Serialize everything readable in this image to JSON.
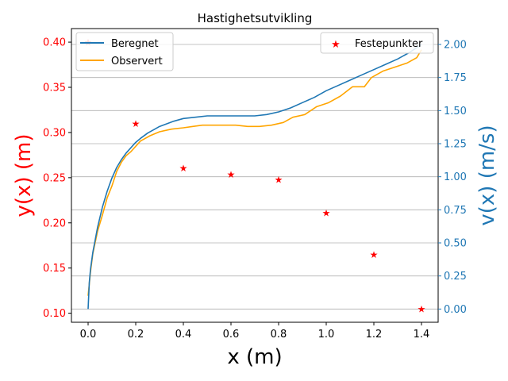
{
  "chart_data": {
    "type": "line",
    "title": "Hastighetsutvikling",
    "xlabel": "x (m)",
    "ylabel_left": "y(x) (m)",
    "ylabel_right": "v(x) (m/s)",
    "xlim": [
      -0.07,
      1.47
    ],
    "ylim_left": [
      0.09,
      0.415
    ],
    "ylim_right": [
      -0.1,
      2.12
    ],
    "x_ticks": [
      "0.0",
      "0.2",
      "0.4",
      "0.6",
      "0.8",
      "1.0",
      "1.2",
      "1.4"
    ],
    "y_left_ticks": [
      "0.10",
      "0.15",
      "0.20",
      "0.25",
      "0.30",
      "0.35",
      "0.40"
    ],
    "y_right_ticks": [
      "0.00",
      "0.25",
      "0.50",
      "0.75",
      "1.00",
      "1.25",
      "1.50",
      "1.75",
      "2.00"
    ],
    "grid": "horizontal on right axis",
    "colors": {
      "left_axis": "#ff0000",
      "right_axis": "#1f77b4",
      "beregnet": "#1f77b4",
      "observert": "#ffa500",
      "festepunkter": "#ff0000",
      "grid": "#b0b0b0"
    },
    "legend_left": {
      "placement": "top-left",
      "entries": [
        "Beregnet",
        "Observert"
      ]
    },
    "legend_right": {
      "placement": "top-right",
      "entries": [
        "Festepunkter"
      ]
    },
    "festepunkter": {
      "name": "Festepunkter",
      "x": [
        0.0,
        0.2,
        0.4,
        0.6,
        0.8,
        1.0,
        1.2,
        1.4
      ],
      "y": [
        0.4,
        0.31,
        0.261,
        0.254,
        0.248,
        0.211,
        0.165,
        0.105
      ]
    },
    "series": [
      {
        "name": "Beregnet",
        "axis": "right",
        "x": [
          0.0,
          0.005,
          0.01,
          0.02,
          0.04,
          0.06,
          0.08,
          0.1,
          0.12,
          0.14,
          0.16,
          0.18,
          0.2,
          0.22,
          0.25,
          0.28,
          0.3,
          0.33,
          0.36,
          0.4,
          0.45,
          0.5,
          0.55,
          0.6,
          0.65,
          0.7,
          0.75,
          0.8,
          0.85,
          0.9,
          0.95,
          1.0,
          1.05,
          1.1,
          1.15,
          1.2,
          1.25,
          1.3,
          1.35,
          1.4
        ],
        "values": [
          0.0,
          0.2,
          0.3,
          0.43,
          0.62,
          0.77,
          0.89,
          0.99,
          1.07,
          1.13,
          1.18,
          1.22,
          1.26,
          1.29,
          1.33,
          1.36,
          1.38,
          1.4,
          1.42,
          1.44,
          1.45,
          1.46,
          1.46,
          1.46,
          1.46,
          1.46,
          1.47,
          1.49,
          1.52,
          1.56,
          1.6,
          1.65,
          1.69,
          1.73,
          1.77,
          1.81,
          1.85,
          1.89,
          1.94,
          2.0
        ]
      },
      {
        "name": "Observert",
        "axis": "right",
        "x": [
          0.0,
          0.01,
          0.02,
          0.04,
          0.06,
          0.08,
          0.1,
          0.12,
          0.14,
          0.16,
          0.18,
          0.2,
          0.22,
          0.26,
          0.3,
          0.35,
          0.4,
          0.44,
          0.48,
          0.53,
          0.57,
          0.62,
          0.67,
          0.72,
          0.77,
          0.82,
          0.86,
          0.91,
          0.96,
          1.01,
          1.06,
          1.11,
          1.16,
          1.19,
          1.24,
          1.29,
          1.34,
          1.38,
          1.4
        ],
        "values": [
          0.1,
          0.28,
          0.42,
          0.59,
          0.71,
          0.84,
          0.93,
          1.04,
          1.11,
          1.16,
          1.19,
          1.23,
          1.27,
          1.31,
          1.34,
          1.36,
          1.37,
          1.38,
          1.39,
          1.39,
          1.39,
          1.39,
          1.38,
          1.38,
          1.39,
          1.41,
          1.45,
          1.47,
          1.53,
          1.56,
          1.61,
          1.68,
          1.68,
          1.75,
          1.8,
          1.83,
          1.86,
          1.9,
          1.96
        ]
      }
    ]
  }
}
